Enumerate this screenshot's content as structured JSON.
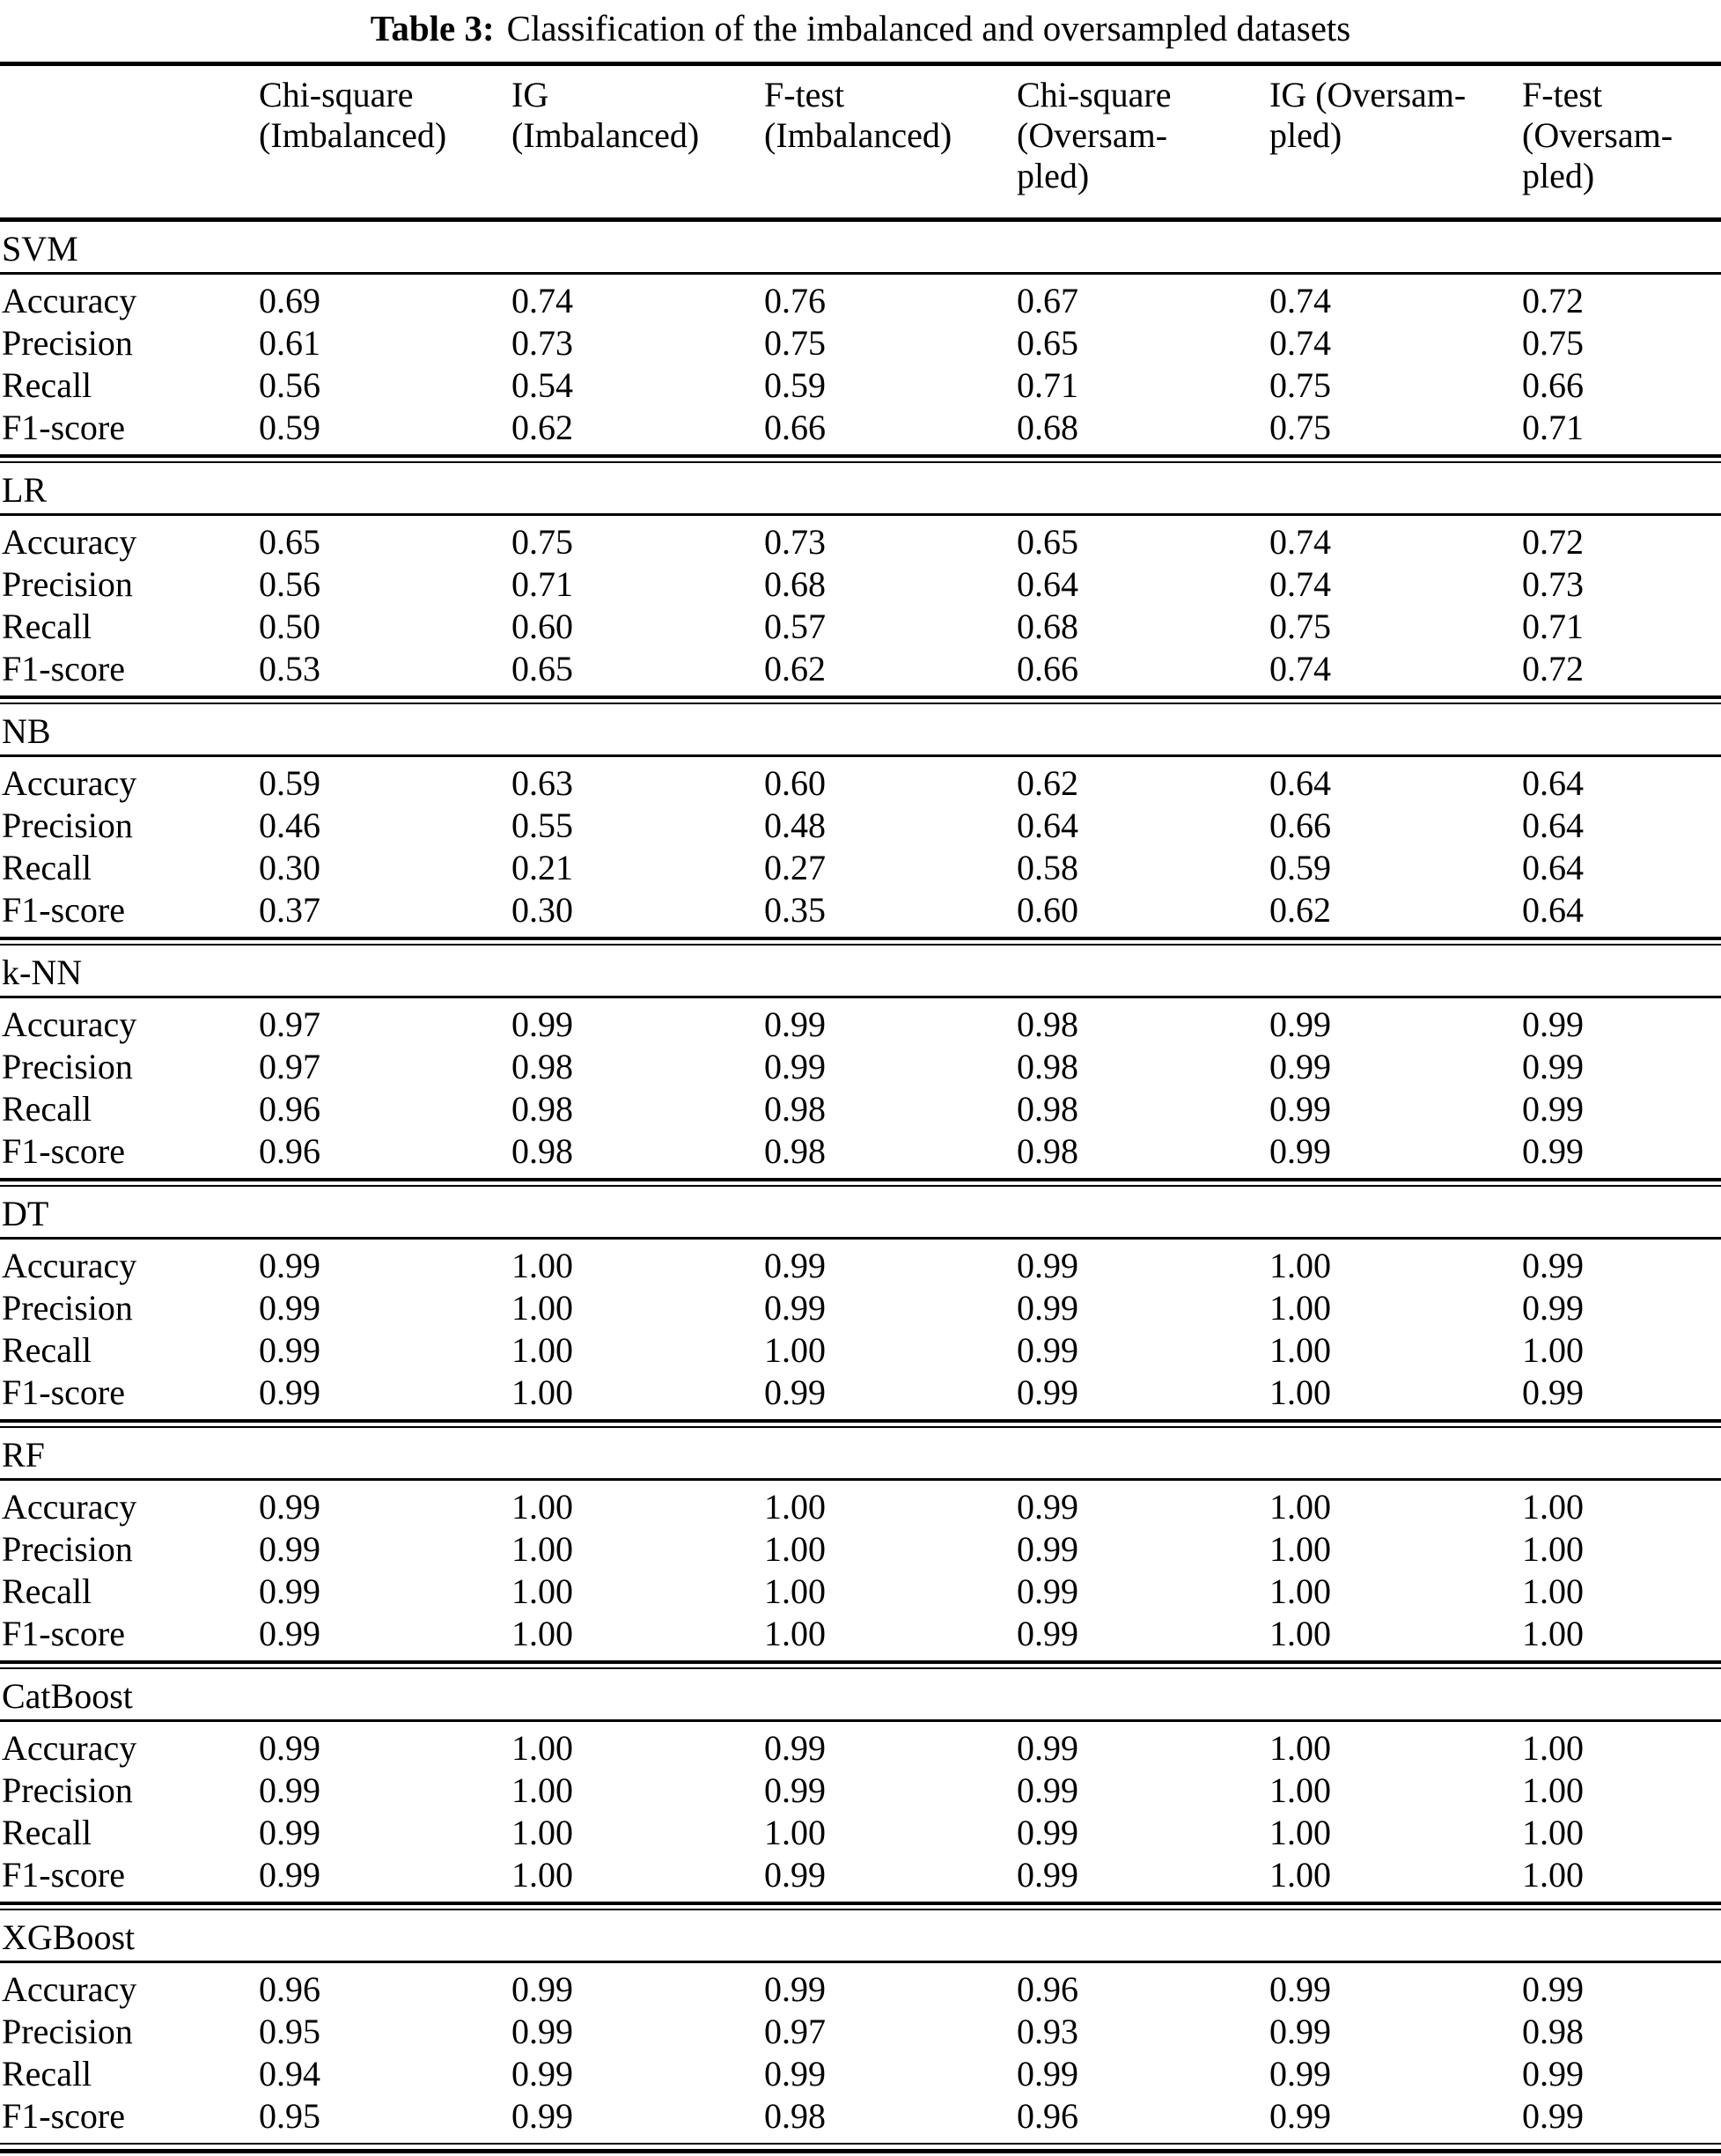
{
  "page": {
    "background": "#ffffff",
    "text_color": "#000000"
  },
  "caption": {
    "label": "Table 3:",
    "text": "Classification of the imbalanced and oversampled datasets"
  },
  "table": {
    "header": {
      "columns": [
        {
          "id": "metric",
          "lines": []
        },
        {
          "id": "chi-square-imbalanced",
          "lines": [
            "Chi-square",
            "(Imbalanced)"
          ]
        },
        {
          "id": "ig-imbalanced",
          "lines": [
            "IG",
            "(Imbalanced)"
          ]
        },
        {
          "id": "f-test-imbalanced",
          "lines": [
            "F-test",
            "(Imbalanced)"
          ]
        },
        {
          "id": "chi-square-oversampled",
          "lines": [
            "Chi-square",
            "(Oversam-",
            "pled)"
          ]
        },
        {
          "id": "ig-oversampled",
          "lines": [
            "IG (Oversam-",
            "pled)"
          ]
        },
        {
          "id": "f-test-oversampled",
          "lines": [
            "F-test",
            "(Oversam-",
            "pled)"
          ]
        }
      ]
    },
    "metrics": [
      "Accuracy",
      "Precision",
      "Recall",
      "F1-score"
    ],
    "sections": [
      {
        "name": "SVM",
        "rows": [
          [
            "0.69",
            "0.74",
            "0.76",
            "0.67",
            "0.74",
            "0.72"
          ],
          [
            "0.61",
            "0.73",
            "0.75",
            "0.65",
            "0.74",
            "0.75"
          ],
          [
            "0.56",
            "0.54",
            "0.59",
            "0.71",
            "0.75",
            "0.66"
          ],
          [
            "0.59",
            "0.62",
            "0.66",
            "0.68",
            "0.75",
            "0.71"
          ]
        ]
      },
      {
        "name": "LR",
        "rows": [
          [
            "0.65",
            "0.75",
            "0.73",
            "0.65",
            "0.74",
            "0.72"
          ],
          [
            "0.56",
            "0.71",
            "0.68",
            "0.64",
            "0.74",
            "0.73"
          ],
          [
            "0.50",
            "0.60",
            "0.57",
            "0.68",
            "0.75",
            "0.71"
          ],
          [
            "0.53",
            "0.65",
            "0.62",
            "0.66",
            "0.74",
            "0.72"
          ]
        ]
      },
      {
        "name": "NB",
        "rows": [
          [
            "0.59",
            "0.63",
            "0.60",
            "0.62",
            "0.64",
            "0.64"
          ],
          [
            "0.46",
            "0.55",
            "0.48",
            "0.64",
            "0.66",
            "0.64"
          ],
          [
            "0.30",
            "0.21",
            "0.27",
            "0.58",
            "0.59",
            "0.64"
          ],
          [
            "0.37",
            "0.30",
            "0.35",
            "0.60",
            "0.62",
            "0.64"
          ]
        ]
      },
      {
        "name": "k-NN",
        "rows": [
          [
            "0.97",
            "0.99",
            "0.99",
            "0.98",
            "0.99",
            "0.99"
          ],
          [
            "0.97",
            "0.98",
            "0.99",
            "0.98",
            "0.99",
            "0.99"
          ],
          [
            "0.96",
            "0.98",
            "0.98",
            "0.98",
            "0.99",
            "0.99"
          ],
          [
            "0.96",
            "0.98",
            "0.98",
            "0.98",
            "0.99",
            "0.99"
          ]
        ]
      },
      {
        "name": "DT",
        "rows": [
          [
            "0.99",
            "1.00",
            "0.99",
            "0.99",
            "1.00",
            "0.99"
          ],
          [
            "0.99",
            "1.00",
            "0.99",
            "0.99",
            "1.00",
            "0.99"
          ],
          [
            "0.99",
            "1.00",
            "1.00",
            "0.99",
            "1.00",
            "1.00"
          ],
          [
            "0.99",
            "1.00",
            "0.99",
            "0.99",
            "1.00",
            "0.99"
          ]
        ]
      },
      {
        "name": "RF",
        "rows": [
          [
            "0.99",
            "1.00",
            "1.00",
            "0.99",
            "1.00",
            "1.00"
          ],
          [
            "0.99",
            "1.00",
            "1.00",
            "0.99",
            "1.00",
            "1.00"
          ],
          [
            "0.99",
            "1.00",
            "1.00",
            "0.99",
            "1.00",
            "1.00"
          ],
          [
            "0.99",
            "1.00",
            "1.00",
            "0.99",
            "1.00",
            "1.00"
          ]
        ]
      },
      {
        "name": "CatBoost",
        "rows": [
          [
            "0.99",
            "1.00",
            "0.99",
            "0.99",
            "1.00",
            "1.00"
          ],
          [
            "0.99",
            "1.00",
            "0.99",
            "0.99",
            "1.00",
            "1.00"
          ],
          [
            "0.99",
            "1.00",
            "1.00",
            "0.99",
            "1.00",
            "1.00"
          ],
          [
            "0.99",
            "1.00",
            "0.99",
            "0.99",
            "1.00",
            "1.00"
          ]
        ]
      },
      {
        "name": "XGBoost",
        "rows": [
          [
            "0.96",
            "0.99",
            "0.99",
            "0.96",
            "0.99",
            "0.99"
          ],
          [
            "0.95",
            "0.99",
            "0.97",
            "0.93",
            "0.99",
            "0.98"
          ],
          [
            "0.94",
            "0.99",
            "0.99",
            "0.99",
            "0.99",
            "0.99"
          ],
          [
            "0.95",
            "0.99",
            "0.98",
            "0.96",
            "0.99",
            "0.99"
          ]
        ]
      }
    ]
  }
}
